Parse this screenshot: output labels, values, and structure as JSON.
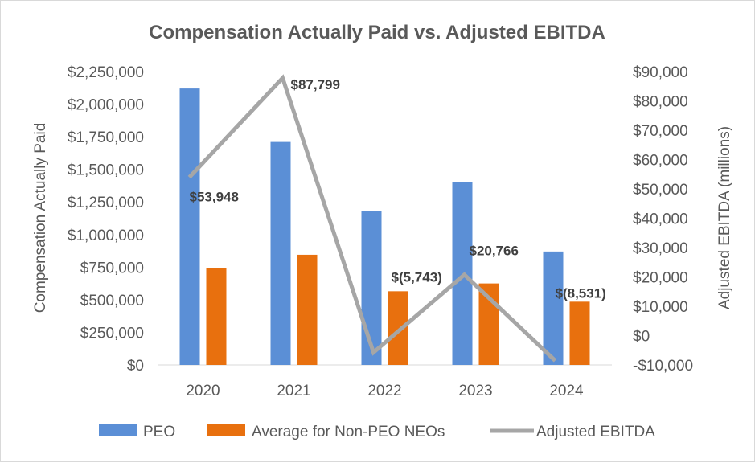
{
  "chart_data": {
    "type": "bar",
    "title": "Compensation Actually Paid vs. Adjusted EBITDA",
    "categories": [
      "2020",
      "2021",
      "2022",
      "2023",
      "2024"
    ],
    "series": [
      {
        "name": "PEO",
        "type": "bar",
        "axis": "left",
        "color": "#5b8fd6",
        "values": [
          2120000,
          1710000,
          1180000,
          1400000,
          870000
        ]
      },
      {
        "name": "Average for Non-PEO NEOs",
        "type": "bar",
        "axis": "left",
        "color": "#e8700e",
        "values": [
          740000,
          845000,
          565000,
          625000,
          485000
        ]
      },
      {
        "name": "Adjusted EBITDA",
        "type": "line",
        "axis": "right",
        "color": "#a6a6a6",
        "values": [
          53948,
          87799,
          -5743,
          20766,
          -8531
        ],
        "data_labels": [
          "$53,948",
          "$87,799",
          "$(5,743)",
          "$20,766",
          "$(8,531)"
        ]
      }
    ],
    "y_left": {
      "label": "Compensation Actually Paid",
      "range": [
        0,
        2250000
      ],
      "ticks": [
        {
          "value": 0,
          "label": "$0"
        },
        {
          "value": 250000,
          "label": "$250,000"
        },
        {
          "value": 500000,
          "label": "$500,000"
        },
        {
          "value": 750000,
          "label": "$750,000"
        },
        {
          "value": 1000000,
          "label": "$1,000,000"
        },
        {
          "value": 1250000,
          "label": "$1,250,000"
        },
        {
          "value": 1500000,
          "label": "$1,500,000"
        },
        {
          "value": 1750000,
          "label": "$1,750,000"
        },
        {
          "value": 2000000,
          "label": "$2,000,000"
        },
        {
          "value": 2250000,
          "label": "$2,250,000"
        }
      ]
    },
    "y_right": {
      "label": "Adjusted EBITDA (millions)",
      "range": [
        -10000,
        90000
      ],
      "ticks": [
        {
          "value": -10000,
          "label": "-$10,000"
        },
        {
          "value": 0,
          "label": "$0"
        },
        {
          "value": 10000,
          "label": "$10,000"
        },
        {
          "value": 20000,
          "label": "$20,000"
        },
        {
          "value": 30000,
          "label": "$30,000"
        },
        {
          "value": 40000,
          "label": "$40,000"
        },
        {
          "value": 50000,
          "label": "$50,000"
        },
        {
          "value": 60000,
          "label": "$60,000"
        },
        {
          "value": 70000,
          "label": "$70,000"
        },
        {
          "value": 80000,
          "label": "$80,000"
        },
        {
          "value": 90000,
          "label": "$90,000"
        }
      ]
    },
    "grid": false,
    "legend_position": "bottom"
  }
}
